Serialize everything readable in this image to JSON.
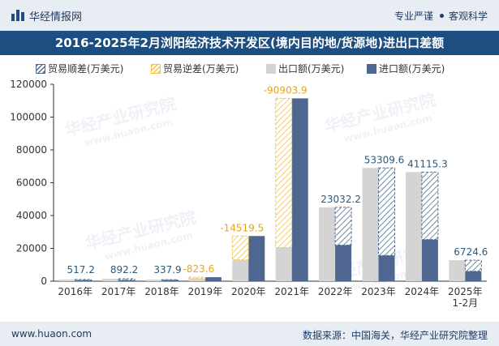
{
  "header": {
    "site_name": "华经情报网",
    "tagline_left": "专业严谨",
    "tagline_right": "客观科学",
    "logo_icon": "bar-chart-icon"
  },
  "title": "2016-2025年2月浏阳经济技术开发区(境内目的地/货源地)进出口差额",
  "footer": {
    "url": "www.huaon.com",
    "source": "数据来源：中国海关，华经产业研究院整理"
  },
  "watermark": {
    "text": "华经产业研究院",
    "url": "www.huaon.com"
  },
  "colors": {
    "surplus": "#4e6d8f",
    "deficit": "#f5c242",
    "export": "#d4d4d4",
    "import": "#4e6690",
    "surplus_label": "#2c5a7a",
    "deficit_label": "#e6a419"
  },
  "chart_data": {
    "type": "bar",
    "categories": [
      "2016年",
      "2017年",
      "2018年",
      "2019年",
      "2020年",
      "2021年",
      "2022年",
      "2023年",
      "2024年",
      "2025年\n1-2月"
    ],
    "series": [
      {
        "name": "出口额(万美元)",
        "values": [
          1050,
          1500,
          950,
          1600,
          13000,
          20500,
          45000,
          69000,
          66500,
          12800
        ]
      },
      {
        "name": "进口额(万美元)",
        "values": [
          533,
          608,
          612,
          2424,
          27520,
          111404,
          21968,
          15690,
          25385,
          6075
        ]
      }
    ],
    "balance": {
      "legend": [
        "贸易顺差(万美元)",
        "贸易逆差(万美元)"
      ],
      "values": [
        517.2,
        892.2,
        337.9,
        -823.6,
        -14519.5,
        -90903.9,
        23032.2,
        53309.6,
        41115.3,
        6724.6
      ],
      "labels": [
        "517.2",
        "892.2",
        "337.9",
        "-823.6",
        "-14519.5",
        "-90903.9",
        "23032.2",
        "53309.6",
        "41115.3",
        "6724.6"
      ]
    },
    "ylim": [
      0,
      120000
    ],
    "yticks": [
      "0",
      "20000",
      "40000",
      "60000",
      "80000",
      "100000",
      "120000"
    ],
    "xlabel": "",
    "ylabel": "",
    "grid": false,
    "legend_position": "top"
  }
}
